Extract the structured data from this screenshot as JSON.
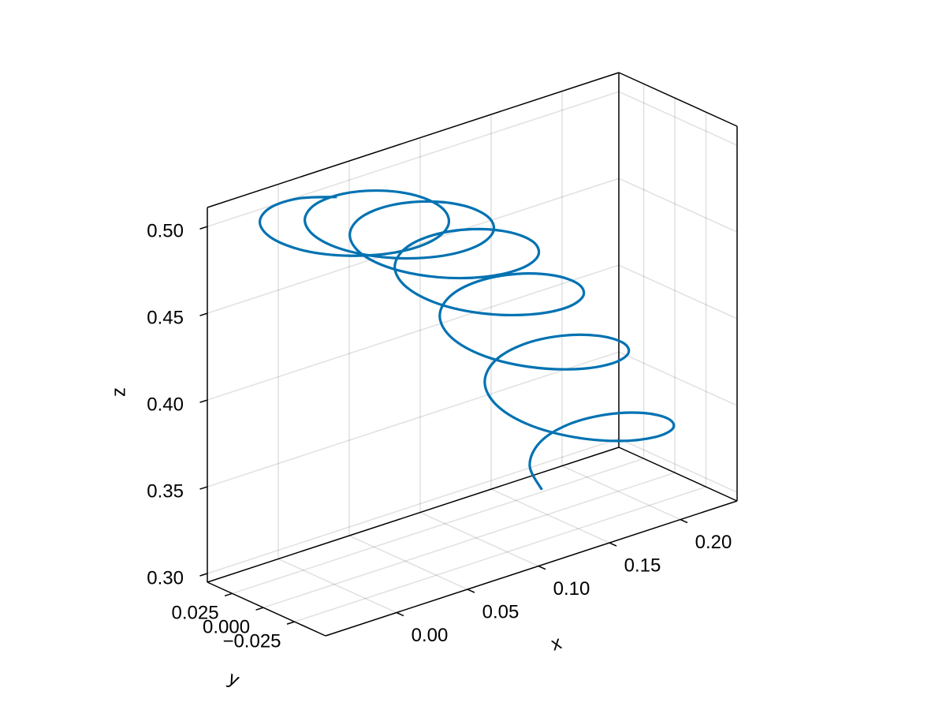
{
  "chart_data": {
    "type": "line3d",
    "x_label": "x",
    "y_label": "y",
    "z_label": "z",
    "color": "#0072b2",
    "grid": true,
    "xlim": [
      -0.05,
      0.24
    ],
    "ylim": [
      -0.05,
      0.045
    ],
    "zlim": [
      0.295,
      0.511
    ],
    "xticks": [
      {
        "value": 0,
        "label": "0.00"
      },
      0.05,
      {
        "value": 0.1,
        "label": "0.10"
      },
      0.15,
      {
        "value": 0.2,
        "label": "0.20"
      }
    ],
    "yticks": [
      0.025,
      {
        "value": 0,
        "label": "0.000"
      },
      {
        "value": -0.025,
        "label": "−0.025"
      }
    ],
    "zticks": [
      {
        "value": 0.3,
        "label": "0.30"
      },
      0.35,
      {
        "value": 0.4,
        "label": "0.40"
      },
      0.45,
      {
        "value": 0.5,
        "label": "0.50"
      }
    ],
    "x": [
      0.0291,
      0.012,
      -0.0081,
      -0.0252,
      -0.0339,
      -0.0313,
      -0.0173,
      0.0051,
      0.0305,
      0.0529,
      0.0669,
      0.0696,
      0.0608,
      0.0437,
      0.0236,
      0.0065,
      -0.0022,
      0.0004,
      0.0144,
      0.0368,
      0.0622,
      0.0846,
      0.0986,
      0.1013,
      0.0925,
      0.0754,
      0.0553,
      0.0382,
      0.0295,
      0.0321,
      0.0461,
      0.0685,
      0.0939,
      0.1163,
      0.1303,
      0.133,
      0.1242,
      0.1071,
      0.087,
      0.0699,
      0.0612,
      0.0638,
      0.0778,
      0.1002,
      0.1256,
      0.148,
      0.162,
      0.1647,
      0.1559,
      0.1388,
      0.1187,
      0.1016,
      0.0929,
      0.0955,
      0.1095,
      0.1319,
      0.1573,
      0.1797,
      0.1937,
      0.1964,
      0.1876,
      0.1705,
      0.1504,
      0.1333,
      0.1246,
      0.1272,
      0.1412,
      0.1636,
      0.189,
      0.2114,
      0.2254,
      0.2281,
      0.2193,
      0.2022,
      0.1821,
      0.165,
      0.1563
    ],
    "y": [
      0.0311,
      0.0425,
      0.0425,
      0.0311,
      0.0114,
      -0.0114,
      -0.0311,
      -0.0425,
      -0.0425,
      -0.0311,
      -0.0114,
      0.0114,
      0.0311,
      0.0425,
      0.0425,
      0.0311,
      0.0114,
      -0.0114,
      -0.0311,
      -0.0425,
      -0.0425,
      -0.0311,
      -0.0114,
      0.0114,
      0.0311,
      0.0425,
      0.0425,
      0.0311,
      0.0114,
      -0.0114,
      -0.0311,
      -0.0425,
      -0.0425,
      -0.0311,
      -0.0114,
      0.0114,
      0.0311,
      0.0425,
      0.0425,
      0.0311,
      0.0114,
      -0.0114,
      -0.0311,
      -0.0425,
      -0.0425,
      -0.0311,
      -0.0114,
      0.0114,
      0.0311,
      0.0425,
      0.0425,
      0.0311,
      0.0114,
      -0.0114,
      -0.0311,
      -0.0425,
      -0.0425,
      -0.0311,
      -0.0114,
      0.0114,
      0.0311,
      0.0425,
      0.0425,
      0.0311,
      0.0114,
      -0.0114,
      -0.0311,
      -0.0425,
      -0.0425,
      -0.0311,
      -0.0114,
      0.0114,
      0.0311,
      0.0425,
      0.0425,
      0.0311,
      0.0114
    ],
    "z": [
      0.5004,
      0.5004,
      0.5003,
      0.5001,
      0.4999,
      0.4995,
      0.4992,
      0.4987,
      0.4982,
      0.4976,
      0.497,
      0.4963,
      0.4955,
      0.4946,
      0.4937,
      0.4927,
      0.4917,
      0.4906,
      0.4894,
      0.4881,
      0.4868,
      0.4854,
      0.4839,
      0.4824,
      0.4808,
      0.4791,
      0.4774,
      0.4756,
      0.4737,
      0.4718,
      0.4698,
      0.4677,
      0.4656,
      0.4633,
      0.4611,
      0.4587,
      0.4563,
      0.4538,
      0.4513,
      0.4486,
      0.446,
      0.4432,
      0.4404,
      0.4375,
      0.4345,
      0.4315,
      0.4284,
      0.4252,
      0.422,
      0.4187,
      0.4153,
      0.4119,
      0.4084,
      0.4048,
      0.4012,
      0.3975,
      0.3937,
      0.3898,
      0.3859,
      0.3819,
      0.3779,
      0.3738,
      0.3696,
      0.3653,
      0.361,
      0.3566,
      0.3522,
      0.3476,
      0.3431,
      0.3384,
      0.3337,
      0.3289,
      0.324,
      0.3191,
      0.3141,
      0.309,
      0.3039
    ]
  }
}
